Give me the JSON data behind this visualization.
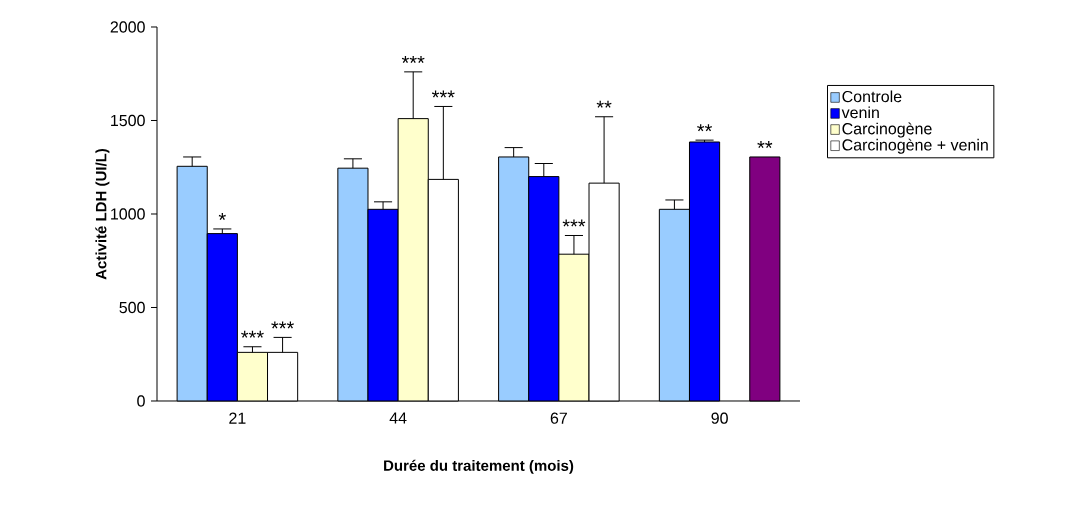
{
  "chart_data": {
    "type": "bar",
    "xlabel": "Durée du traitement (mois)",
    "ylabel": "Activité LDH (UI/L)",
    "categories": [
      "21",
      "44",
      "67",
      "90"
    ],
    "ylim": [
      0,
      2000
    ],
    "yticks": [
      0,
      500,
      1000,
      1500,
      2000
    ],
    "grid": false,
    "legend": "right",
    "series": [
      {
        "name": "Controle",
        "color": "#99ccff",
        "values": [
          1255,
          1245,
          1305,
          1025
        ],
        "errors": [
          [
            1255,
            1305
          ],
          [
            1245,
            1295
          ],
          [
            1305,
            1355
          ],
          [
            1025,
            1075
          ]
        ],
        "value_labels": [
          null,
          null,
          null,
          null
        ]
      },
      {
        "name": "venin",
        "color": "#0000ff",
        "values": [
          895,
          1025,
          1200,
          1385
        ],
        "errors": [
          [
            895,
            920
          ],
          [
            1025,
            1065
          ],
          [
            1200,
            1270
          ],
          [
            1385,
            1395
          ]
        ],
        "value_labels": [
          "*",
          null,
          null,
          "**"
        ]
      },
      {
        "name": "Carcinogène",
        "color": "#ffffcc",
        "values": [
          260,
          1510,
          785,
          null
        ],
        "errors": [
          [
            260,
            290
          ],
          [
            1510,
            1760
          ],
          [
            785,
            885
          ],
          null
        ],
        "value_labels": [
          "***",
          "***",
          "***",
          null
        ]
      },
      {
        "name": "Carcinogène + venin",
        "color": "#ffffff",
        "colors": [
          "#ffffff",
          "#ffffff",
          "#ffffff",
          "#800080"
        ],
        "values": [
          260,
          1185,
          1165,
          1305
        ],
        "errors": [
          [
            260,
            340
          ],
          [
            1185,
            1575
          ],
          [
            1165,
            1520
          ],
          null
        ],
        "value_labels": [
          "***",
          null,
          null,
          "**"
        ]
      }
    ],
    "annotations": [
      "***",
      "**"
    ]
  }
}
